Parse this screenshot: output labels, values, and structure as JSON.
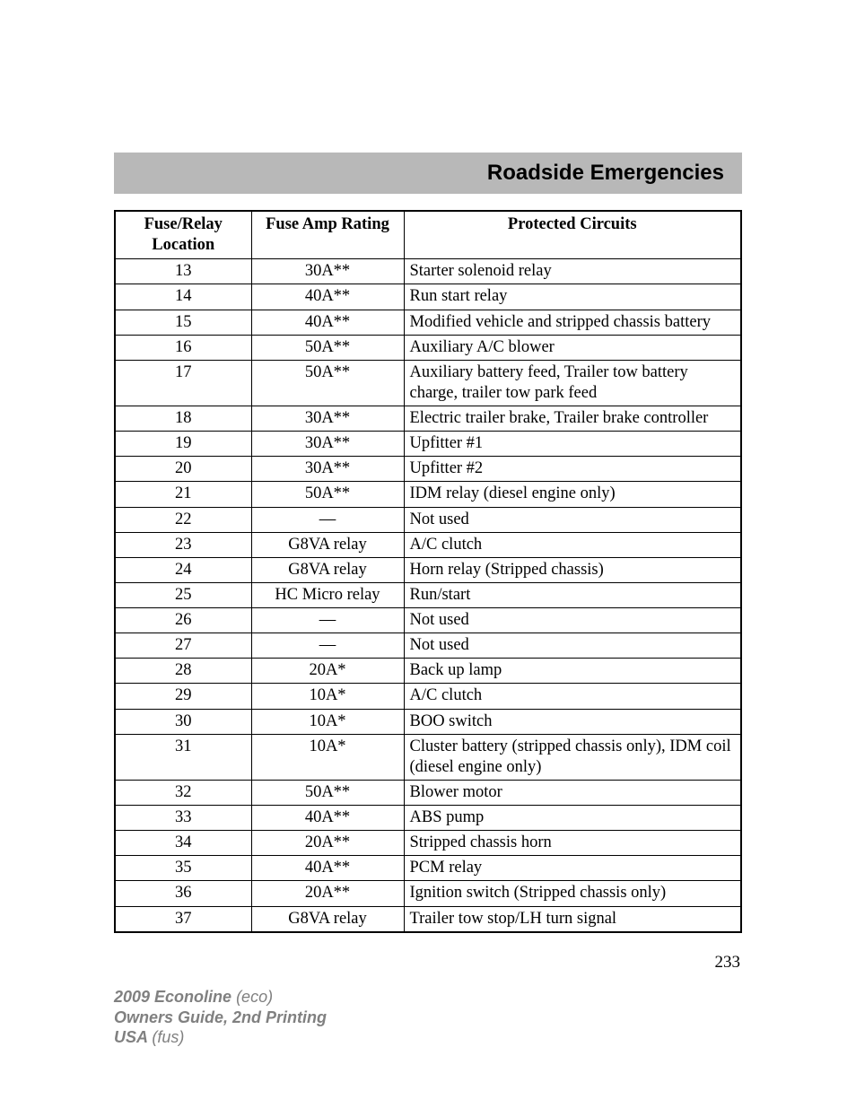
{
  "header": {
    "title": "Roadside Emergencies"
  },
  "table": {
    "headers": {
      "location": "Fuse/Relay Location",
      "amp": "Fuse Amp Rating",
      "circuits": "Protected Circuits"
    },
    "rows": [
      {
        "loc": "13",
        "amp": "30A**",
        "desc": "Starter solenoid relay"
      },
      {
        "loc": "14",
        "amp": "40A**",
        "desc": "Run start relay"
      },
      {
        "loc": "15",
        "amp": "40A**",
        "desc": "Modified vehicle and stripped chassis battery"
      },
      {
        "loc": "16",
        "amp": "50A**",
        "desc": "Auxiliary A/C blower"
      },
      {
        "loc": "17",
        "amp": "50A**",
        "desc": "Auxiliary battery feed, Trailer tow battery charge, trailer tow park feed"
      },
      {
        "loc": "18",
        "amp": "30A**",
        "desc": "Electric trailer brake, Trailer brake controller"
      },
      {
        "loc": "19",
        "amp": "30A**",
        "desc": "Upfitter #1"
      },
      {
        "loc": "20",
        "amp": "30A**",
        "desc": "Upfitter #2"
      },
      {
        "loc": "21",
        "amp": "50A**",
        "desc": "IDM relay (diesel engine only)"
      },
      {
        "loc": "22",
        "amp": "—",
        "desc": "Not used"
      },
      {
        "loc": "23",
        "amp": "G8VA relay",
        "desc": "A/C clutch"
      },
      {
        "loc": "24",
        "amp": "G8VA relay",
        "desc": "Horn relay (Stripped chassis)"
      },
      {
        "loc": "25",
        "amp": "HC Micro relay",
        "desc": "Run/start"
      },
      {
        "loc": "26",
        "amp": "—",
        "desc": "Not used"
      },
      {
        "loc": "27",
        "amp": "—",
        "desc": "Not used"
      },
      {
        "loc": "28",
        "amp": "20A*",
        "desc": "Back up lamp"
      },
      {
        "loc": "29",
        "amp": "10A*",
        "desc": "A/C clutch"
      },
      {
        "loc": "30",
        "amp": "10A*",
        "desc": "BOO switch"
      },
      {
        "loc": "31",
        "amp": "10A*",
        "desc": "Cluster battery (stripped chassis only), IDM coil (diesel engine only)"
      },
      {
        "loc": "32",
        "amp": "50A**",
        "desc": "Blower motor"
      },
      {
        "loc": "33",
        "amp": "40A**",
        "desc": "ABS pump"
      },
      {
        "loc": "34",
        "amp": "20A**",
        "desc": "Stripped chassis horn"
      },
      {
        "loc": "35",
        "amp": "40A**",
        "desc": "PCM relay"
      },
      {
        "loc": "36",
        "amp": "20A**",
        "desc": "Ignition switch (Stripped chassis only)"
      },
      {
        "loc": "37",
        "amp": "G8VA relay",
        "desc": "Trailer tow stop/LH turn signal"
      }
    ]
  },
  "page_number": "233",
  "footer": {
    "line1_bold": "2009 Econoline ",
    "line1_ital": "(eco)",
    "line2": "Owners Guide, 2nd Printing",
    "line3_bold": "USA ",
    "line3_ital": "(fus)"
  },
  "style": {
    "header_bg": "#b8b8b8",
    "border_color": "#000000",
    "footer_color": "#808080",
    "body_font": "Times New Roman",
    "header_font": "Arial"
  }
}
